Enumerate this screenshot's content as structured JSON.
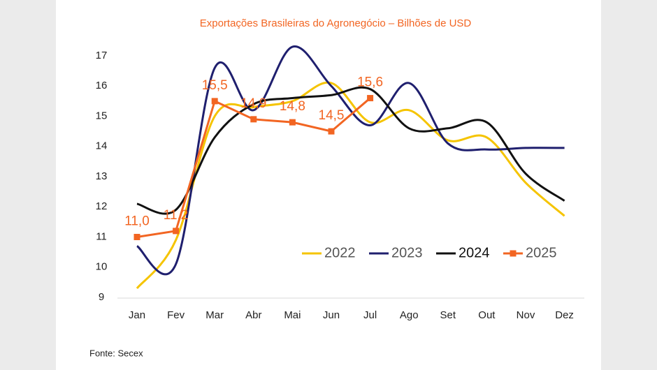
{
  "chart_data": {
    "type": "line",
    "title": "Exportações Brasileiras do Agronegócio – Bilhões de USD",
    "categories": [
      "Jan",
      "Fev",
      "Mar",
      "Abr",
      "Mai",
      "Jun",
      "Jul",
      "Ago",
      "Set",
      "Out",
      "Nov",
      "Dez"
    ],
    "ylim": [
      9,
      17
    ],
    "yticks": [
      9,
      10,
      11,
      12,
      13,
      14,
      15,
      16,
      17
    ],
    "grid": false,
    "legend": "lower right",
    "series": [
      {
        "name": "2022",
        "color": "#f5c400",
        "smooth": true,
        "values": [
          9.3,
          10.9,
          15.0,
          15.3,
          15.5,
          16.1,
          14.8,
          15.2,
          14.2,
          14.3,
          12.8,
          11.7
        ]
      },
      {
        "name": "2023",
        "color": "#1f1f6e",
        "smooth": true,
        "values": [
          10.7,
          10.1,
          16.6,
          15.2,
          17.3,
          16.0,
          14.7,
          16.1,
          14.1,
          13.9,
          13.95,
          13.95
        ]
      },
      {
        "name": "2024",
        "color": "#111111",
        "smooth": true,
        "values": [
          12.1,
          11.9,
          14.3,
          15.4,
          15.6,
          15.7,
          15.9,
          14.6,
          14.6,
          14.8,
          13.1,
          12.2
        ]
      },
      {
        "name": "2025",
        "color": "#f26522",
        "smooth": false,
        "marker": "square",
        "values": [
          11.0,
          11.2,
          15.5,
          14.9,
          14.8,
          14.5,
          15.6,
          null,
          null,
          null,
          null,
          null
        ],
        "value_labels": [
          "11,0",
          "11,2",
          "15,5",
          "14,9",
          "14,8",
          "14,5",
          "15,6",
          null,
          null,
          null,
          null,
          null
        ]
      }
    ]
  },
  "source": "Fonte: Secex"
}
